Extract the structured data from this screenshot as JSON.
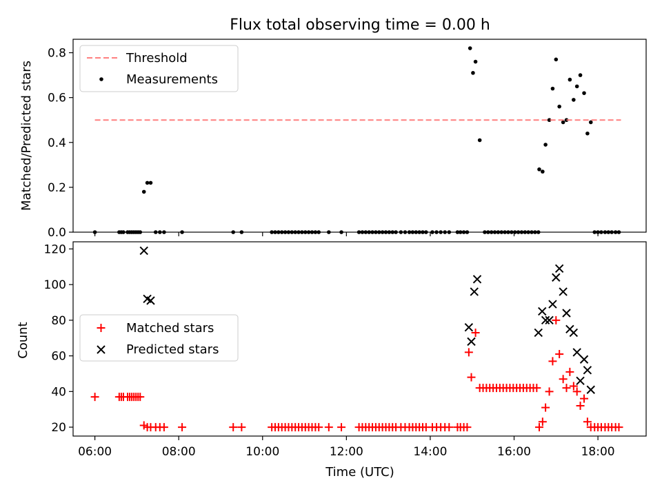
{
  "chart_data": [
    {
      "type": "scatter",
      "title": "Flux total observing time = 0.00 h",
      "xlabel": "",
      "ylabel": "Matched/Predicted stars",
      "xlim": [
        5.48,
        19.15
      ],
      "ylim": [
        0,
        0.86
      ],
      "yticks": [
        0,
        0.2,
        0.4,
        0.6,
        0.8
      ],
      "ytick_labels": [
        "0.0",
        "0.2",
        "0.4",
        "0.6",
        "0.8"
      ],
      "xticks": [
        6,
        8,
        10,
        12,
        14,
        16,
        18
      ],
      "legend_position": "top-left",
      "grid": false,
      "threshold": {
        "name": "Threshold",
        "value": 0.5,
        "x_range": [
          6.0,
          18.55
        ],
        "color": "#ff7f7f"
      },
      "series": [
        {
          "name": "Measurements",
          "color": "#000000",
          "marker": "dot",
          "x": [
            6.0,
            6.58,
            6.63,
            6.68,
            6.78,
            6.83,
            6.88,
            6.93,
            6.98,
            7.03,
            7.08,
            7.17,
            7.25,
            7.33,
            7.45,
            7.55,
            7.65,
            8.08,
            9.3,
            9.5,
            10.22,
            10.3,
            10.38,
            10.46,
            10.54,
            10.62,
            10.7,
            10.78,
            10.86,
            10.94,
            11.02,
            11.1,
            11.18,
            11.26,
            11.34,
            11.58,
            11.88,
            12.3,
            12.38,
            12.46,
            12.54,
            12.62,
            12.7,
            12.78,
            12.86,
            12.94,
            13.02,
            13.1,
            13.18,
            13.3,
            13.4,
            13.5,
            13.58,
            13.66,
            13.74,
            13.82,
            13.9,
            14.05,
            14.15,
            14.25,
            14.35,
            14.45,
            14.65,
            14.72,
            14.8,
            14.88,
            14.95,
            15.02,
            15.08,
            15.18,
            15.3,
            15.38,
            15.46,
            15.54,
            15.62,
            15.7,
            15.78,
            15.86,
            15.94,
            16.02,
            16.1,
            16.18,
            16.26,
            16.34,
            16.42,
            16.5,
            16.58,
            16.6,
            16.68,
            16.75,
            16.84,
            16.92,
            17.0,
            17.08,
            17.17,
            17.25,
            17.33,
            17.42,
            17.5,
            17.58,
            17.67,
            17.75,
            17.83,
            17.92,
            18.0,
            18.08,
            18.17,
            18.25,
            18.33,
            18.42,
            18.5
          ],
          "y": [
            0,
            0,
            0,
            0,
            0,
            0,
            0,
            0,
            0,
            0,
            0,
            0.18,
            0.22,
            0.22,
            0,
            0,
            0,
            0,
            0,
            0,
            0,
            0,
            0,
            0,
            0,
            0,
            0,
            0,
            0,
            0,
            0,
            0,
            0,
            0,
            0,
            0,
            0,
            0,
            0,
            0,
            0,
            0,
            0,
            0,
            0,
            0,
            0,
            0,
            0,
            0,
            0,
            0,
            0,
            0,
            0,
            0,
            0,
            0,
            0,
            0,
            0,
            0,
            0,
            0,
            0,
            0,
            0.82,
            0.71,
            0.76,
            0.41,
            0,
            0,
            0,
            0,
            0,
            0,
            0,
            0,
            0,
            0,
            0,
            0,
            0,
            0,
            0,
            0,
            0,
            0.28,
            0.27,
            0.39,
            0.5,
            0.64,
            0.77,
            0.56,
            0.49,
            0.5,
            0.68,
            0.59,
            0.65,
            0.7,
            0.62,
            0.44,
            0.49,
            0,
            0,
            0,
            0,
            0,
            0,
            0,
            0
          ]
        }
      ]
    },
    {
      "type": "scatter",
      "title": "",
      "xlabel": "Time (UTC)",
      "ylabel": "Count",
      "xlim": [
        5.48,
        19.15
      ],
      "ylim": [
        15,
        124
      ],
      "yticks": [
        20,
        40,
        60,
        80,
        100,
        120
      ],
      "ytick_labels": [
        "20",
        "40",
        "60",
        "80",
        "100",
        "120"
      ],
      "xticks": [
        6,
        8,
        10,
        12,
        14,
        16,
        18
      ],
      "xtick_labels": [
        "06:00",
        "08:00",
        "10:00",
        "12:00",
        "14:00",
        "16:00",
        "18:00"
      ],
      "legend_position": "center-left",
      "grid": false,
      "series": [
        {
          "name": "Matched stars",
          "color": "#ff0000",
          "marker": "plus",
          "x": [
            6.0,
            6.58,
            6.63,
            6.68,
            6.78,
            6.83,
            6.88,
            6.93,
            6.98,
            7.03,
            7.08,
            7.17,
            7.25,
            7.33,
            7.45,
            7.55,
            7.65,
            8.08,
            9.3,
            9.5,
            10.22,
            10.3,
            10.38,
            10.46,
            10.54,
            10.62,
            10.7,
            10.78,
            10.86,
            10.94,
            11.02,
            11.1,
            11.18,
            11.26,
            11.34,
            11.58,
            11.88,
            12.3,
            12.38,
            12.46,
            12.54,
            12.62,
            12.7,
            12.78,
            12.86,
            12.94,
            13.02,
            13.1,
            13.18,
            13.3,
            13.4,
            13.5,
            13.58,
            13.66,
            13.74,
            13.82,
            13.9,
            14.05,
            14.15,
            14.25,
            14.35,
            14.45,
            14.65,
            14.72,
            14.8,
            14.88,
            14.92,
            14.98,
            15.08,
            15.18,
            15.26,
            15.34,
            15.42,
            15.5,
            15.58,
            15.66,
            15.74,
            15.82,
            15.9,
            15.98,
            16.06,
            16.14,
            16.22,
            16.3,
            16.38,
            16.46,
            16.54,
            16.6,
            16.68,
            16.75,
            16.84,
            16.92,
            17.0,
            17.08,
            17.17,
            17.25,
            17.33,
            17.42,
            17.5,
            17.58,
            17.67,
            17.75,
            17.83,
            17.92,
            18.0,
            18.08,
            18.17,
            18.25,
            18.33,
            18.42,
            18.5
          ],
          "y": [
            37,
            37,
            37,
            37,
            37,
            37,
            37,
            37,
            37,
            37,
            37,
            21,
            20,
            20,
            20,
            20,
            20,
            20,
            20,
            20,
            20,
            20,
            20,
            20,
            20,
            20,
            20,
            20,
            20,
            20,
            20,
            20,
            20,
            20,
            20,
            20,
            20,
            20,
            20,
            20,
            20,
            20,
            20,
            20,
            20,
            20,
            20,
            20,
            20,
            20,
            20,
            20,
            20,
            20,
            20,
            20,
            20,
            20,
            20,
            20,
            20,
            20,
            20,
            20,
            20,
            20,
            62,
            48,
            73,
            42,
            42,
            42,
            42,
            42,
            42,
            42,
            42,
            42,
            42,
            42,
            42,
            42,
            42,
            42,
            42,
            42,
            42,
            20,
            23,
            31,
            40,
            57,
            80,
            61,
            47,
            42,
            51,
            43,
            40,
            32,
            36,
            23,
            20,
            20,
            20,
            20,
            20,
            20,
            20,
            20,
            20
          ]
        },
        {
          "name": "Predicted stars",
          "color": "#000000",
          "marker": "x",
          "x": [
            7.17,
            7.25,
            7.33,
            14.92,
            14.98,
            15.05,
            15.12,
            16.58,
            16.67,
            16.75,
            16.84,
            16.92,
            17.0,
            17.08,
            17.17,
            17.25,
            17.33,
            17.42,
            17.5,
            17.58,
            17.67,
            17.75,
            17.83
          ],
          "y": [
            119,
            92,
            91,
            76,
            68,
            96,
            103,
            73,
            85,
            80,
            80,
            89,
            104,
            109,
            96,
            84,
            75,
            73,
            62,
            46,
            58,
            52,
            41
          ]
        }
      ]
    }
  ]
}
